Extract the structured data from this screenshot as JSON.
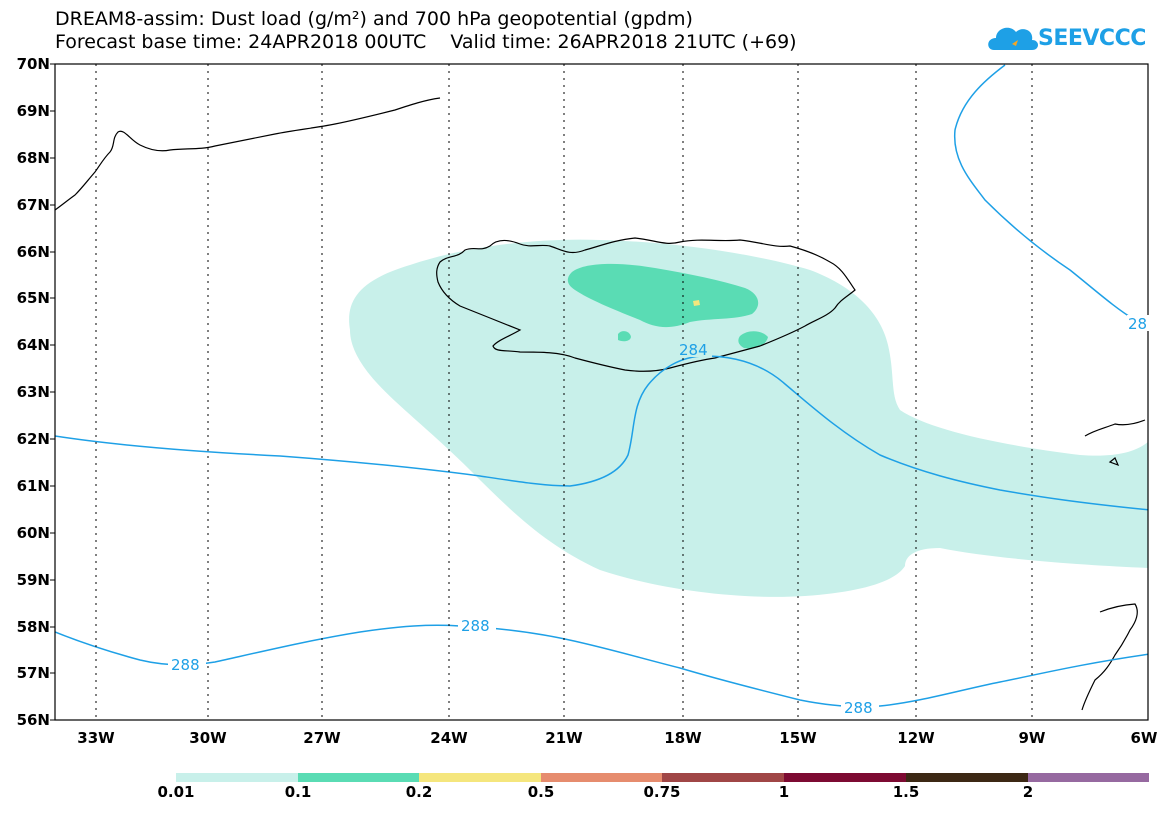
{
  "header": {
    "title_line1": "DREAM8-assim: Dust load (g/m²) and 700 hPa geopotential (gpdm)",
    "title_line2": "Forecast base time: 24APR2018 00UTC    Valid time: 26APR2018 21UTC (+69)"
  },
  "logo": {
    "text": "SEEVCCC",
    "color": "#1ea0e6"
  },
  "axes": {
    "lat_labels": [
      "70N",
      "69N",
      "68N",
      "67N",
      "66N",
      "65N",
      "64N",
      "63N",
      "62N",
      "61N",
      "60N",
      "59N",
      "58N",
      "57N",
      "56N"
    ],
    "lon_labels": [
      "33W",
      "30W",
      "27W",
      "24W",
      "21W",
      "18W",
      "15W",
      "12W",
      "9W",
      "6W"
    ],
    "grid": "dotted"
  },
  "contours": {
    "labels": [
      "284",
      "288",
      "288",
      "288",
      "28"
    ],
    "color": "#1ea0e6"
  },
  "colorbar": {
    "labels": [
      "0.01",
      "0.1",
      "0.2",
      "0.5",
      "0.75",
      "1",
      "1.5",
      "2"
    ],
    "colors": [
      "#c8f0ea",
      "#5adcb4",
      "#f5e67d",
      "#e68c6e",
      "#a04646",
      "#7d0a32",
      "#3c2814",
      "#9669a0"
    ]
  },
  "dust_colors": {
    "low": "#c8f0ea",
    "mid": "#5adcb4",
    "high": "#f5e67d"
  }
}
